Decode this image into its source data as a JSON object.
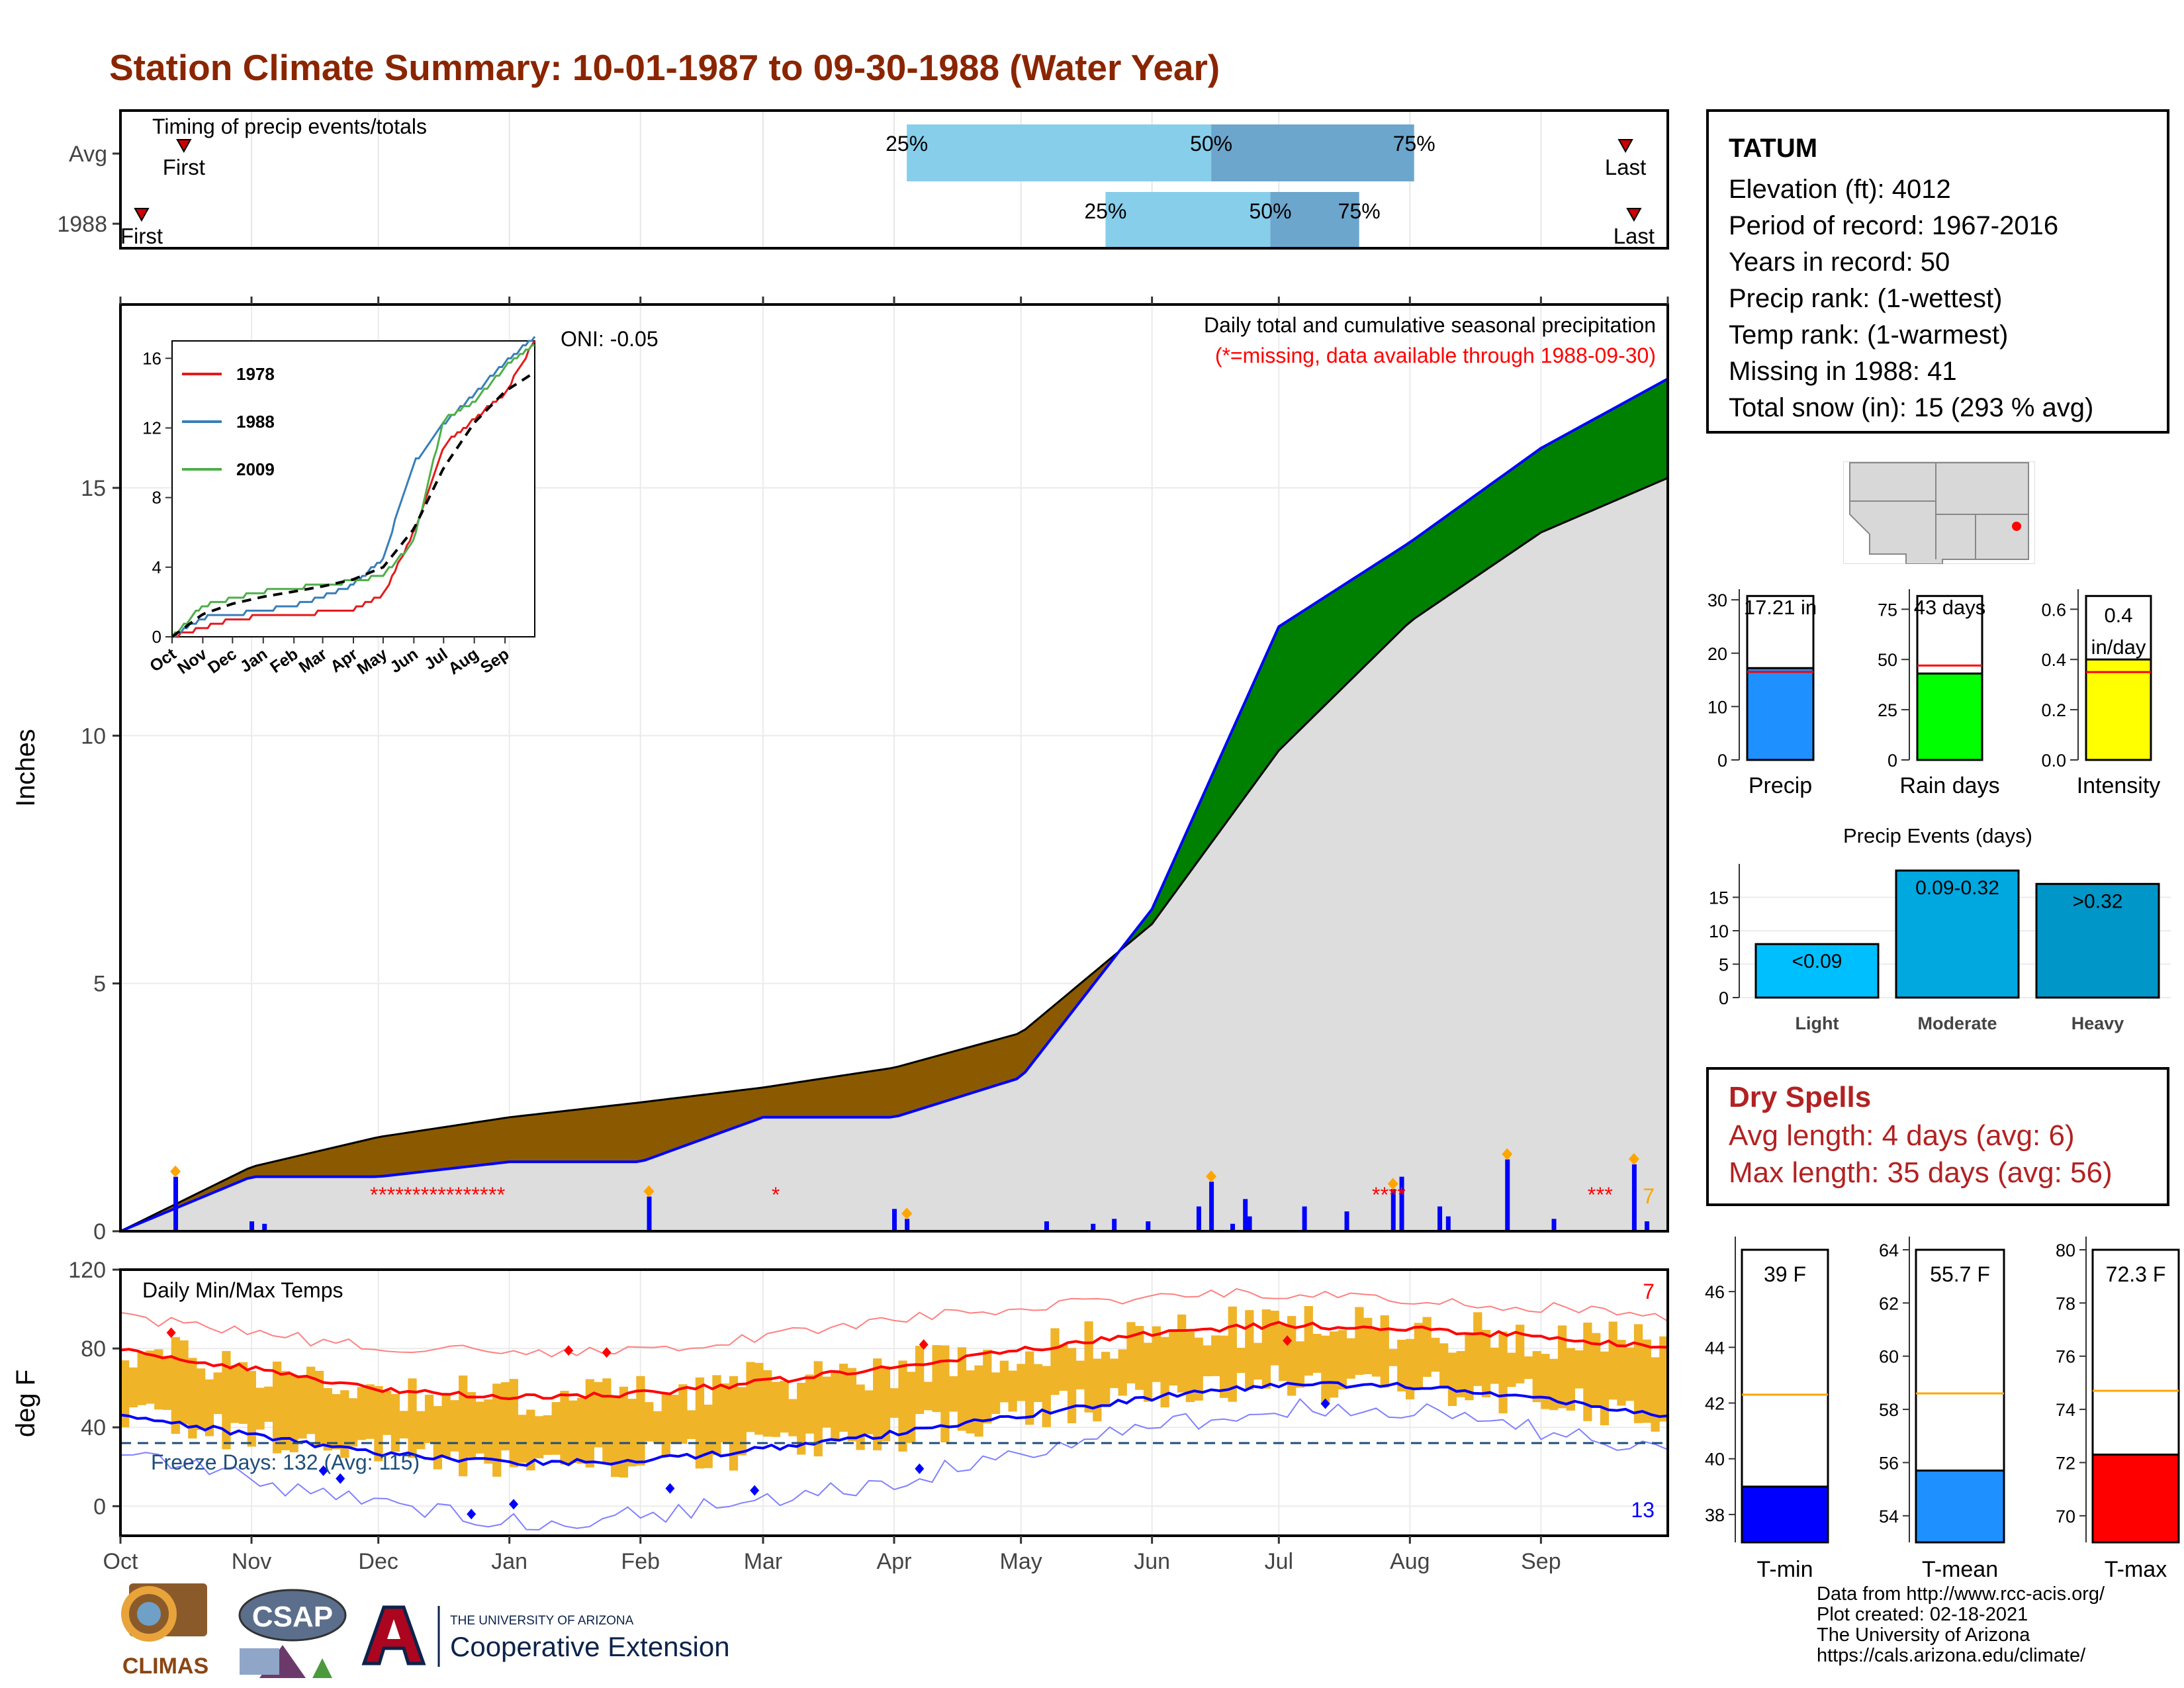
{
  "title": "Station Climate Summary: 10-01-1987 to 09-30-1988 (Water Year)",
  "timing": {
    "panel_label": "Timing of precip events/totals",
    "rows": [
      {
        "label": "Avg",
        "first_label": "First",
        "last_label": "Last",
        "first_day": 15,
        "last_day": 356,
        "p25": 186,
        "p50": 258,
        "p75": 306
      },
      {
        "label": "1988",
        "first_label": "First",
        "last_label": "Last",
        "first_day": 5,
        "last_day": 358,
        "p25": 233,
        "p50": 272,
        "p75": 293
      }
    ],
    "pct_labels": [
      "25%",
      "50%",
      "75%"
    ]
  },
  "precip": {
    "title": "Daily total and cumulative seasonal precipitation",
    "subtitle": "(*=missing, data available through 1988-09-30)",
    "oni": "ONI: -0.05",
    "ylabel": "Inches",
    "yticks": [
      "0",
      "5",
      "10",
      "15"
    ],
    "corner_count": "7",
    "colors": {
      "above": "#008000",
      "below": "#8B5A00",
      "avg_fill": "#DDDDDD",
      "cum_line": "#0000FF"
    }
  },
  "inset": {
    "yticks": [
      "0",
      "4",
      "8",
      "12",
      "16"
    ],
    "xticks": [
      "Oct",
      "Nov",
      "Dec",
      "Jan",
      "Feb",
      "Mar",
      "Apr",
      "May",
      "Jun",
      "Jul",
      "Aug",
      "Sep"
    ],
    "legend": [
      {
        "name": "1978",
        "color": "#E41A1C"
      },
      {
        "name": "1988",
        "color": "#377EB8"
      },
      {
        "name": "2009",
        "color": "#4DAF4A"
      }
    ]
  },
  "temps": {
    "title": "Daily Min/Max Temps",
    "ylabel": "deg F",
    "yticks": [
      "0",
      "40",
      "80",
      "120"
    ],
    "freeze_label": "Freeze Days: 132 (Avg: 115)",
    "max_count": "7",
    "min_count": "13",
    "freeze_line": 32
  },
  "xaxis": {
    "months": [
      "Oct",
      "Nov",
      "Dec",
      "Jan",
      "Feb",
      "Mar",
      "Apr",
      "May",
      "Jun",
      "Jul",
      "Aug",
      "Sep"
    ]
  },
  "station": {
    "name": "TATUM",
    "lines": [
      "Elevation (ft): 4012",
      "Period of record: 1967-2016",
      "Years in record: 50",
      "Precip rank:  (1-wettest)",
      "Temp rank:  (1-warmest)",
      "Missing in 1988: 41",
      "Total snow (in): 15 (293 % avg)"
    ]
  },
  "summary_bars": [
    {
      "label": "Precip",
      "value_text": "17.21 in",
      "value": 17.21,
      "avg": 16.5,
      "ymax": 32,
      "ticks": [
        "0",
        "10",
        "20",
        "30"
      ],
      "tickvals": [
        0,
        10,
        20,
        30
      ],
      "color": "#1E90FF"
    },
    {
      "label": "Rain days",
      "value_text": "43 days",
      "value": 43,
      "avg": 47,
      "ymax": 85,
      "ticks": [
        "0",
        "25",
        "50",
        "75"
      ],
      "tickvals": [
        0,
        25,
        50,
        75
      ],
      "color": "#00FF00"
    },
    {
      "label": "Intensity",
      "value_text": "0.4 in/day",
      "value": 0.4,
      "avg": 0.35,
      "ymax": 0.68,
      "ticks": [
        "0.0",
        "0.2",
        "0.4",
        "0.6"
      ],
      "tickvals": [
        0,
        0.2,
        0.4,
        0.6
      ],
      "color": "#FFFF00"
    }
  ],
  "events": {
    "title": "Precip Events (days)",
    "yticks": [
      "0",
      "5",
      "10",
      "15"
    ],
    "categories": [
      "Light",
      "Moderate",
      "Heavy"
    ],
    "labels": [
      "<0.09",
      "0.09-0.32",
      ">0.32"
    ],
    "values": [
      8,
      19,
      17
    ],
    "colors": [
      "#00BFFF",
      "#00A8E0",
      "#0096C8"
    ]
  },
  "dry_spells": {
    "title": "Dry Spells",
    "avg": "Avg length: 4 days (avg: 6)",
    "max": "Max length: 35 days (avg: 56)"
  },
  "temp_bars": [
    {
      "label": "T-min",
      "value_text": "39 F",
      "value": 39,
      "avg": 42.3,
      "ymin": 37,
      "ymax": 47.5,
      "ticks": [
        "38",
        "40",
        "42",
        "44",
        "46"
      ],
      "tickvals": [
        38,
        40,
        42,
        44,
        46
      ],
      "color": "#0000FF"
    },
    {
      "label": "T-mean",
      "value_text": "55.7 F",
      "value": 55.7,
      "avg": 58.6,
      "ymin": 53,
      "ymax": 64,
      "ticks": [
        "54",
        "56",
        "58",
        "60",
        "62",
        "64"
      ],
      "tickvals": [
        54,
        56,
        58,
        60,
        62,
        64
      ],
      "color": "#1E90FF"
    },
    {
      "label": "T-max",
      "value_text": "72.3 F",
      "value": 72.3,
      "avg": 74.7,
      "ymin": 69,
      "ymax": 80,
      "ticks": [
        "70",
        "72",
        "74",
        "76",
        "78",
        "80"
      ],
      "tickvals": [
        70,
        72,
        74,
        76,
        78,
        80
      ],
      "color": "#FF0000"
    }
  ],
  "credits": [
    "Data from http://www.rcc-acis.org/",
    "Plot created: 02-18-2021",
    "The University of Arizona",
    "https://cals.arizona.edu/climate/"
  ],
  "logos": {
    "climas": "CLIMAS",
    "csap": "CSAP",
    "ua_small": "THE UNIVERSITY OF ARIZONA",
    "ua_big": "Cooperative Extension"
  },
  "chart_data": [
    {
      "type": "area",
      "title": "Daily total and cumulative seasonal precipitation",
      "ylabel": "Inches",
      "ylim": [
        0,
        18.7
      ],
      "x": [
        "Oct",
        "Nov",
        "Dec",
        "Jan",
        "Feb",
        "Mar",
        "Apr",
        "May",
        "Jun",
        "Jul",
        "Aug",
        "Sep",
        "Sep-30"
      ],
      "series": [
        {
          "name": "1988 cumulative",
          "values": [
            0,
            1.1,
            1.1,
            1.4,
            1.4,
            2.3,
            2.3,
            3.1,
            6.5,
            12.2,
            13.9,
            15.8,
            17.2
          ]
        },
        {
          "name": "average cumulative",
          "values": [
            0,
            1.3,
            1.9,
            2.3,
            2.6,
            2.9,
            3.3,
            4.0,
            6.2,
            9.7,
            12.3,
            14.1,
            15.2
          ]
        }
      ],
      "daily_precip": [
        {
          "day": 13,
          "value": 1.1
        },
        {
          "day": 31,
          "value": 0.2
        },
        {
          "day": 34,
          "value": 0.15
        },
        {
          "day": 125,
          "value": 0.7
        },
        {
          "day": 183,
          "value": 0.45
        },
        {
          "day": 186,
          "value": 0.25
        },
        {
          "day": 219,
          "value": 0.2
        },
        {
          "day": 230,
          "value": 0.15
        },
        {
          "day": 235,
          "value": 0.25
        },
        {
          "day": 243,
          "value": 0.2
        },
        {
          "day": 255,
          "value": 0.5
        },
        {
          "day": 258,
          "value": 1.0
        },
        {
          "day": 263,
          "value": 0.15
        },
        {
          "day": 266,
          "value": 0.65
        },
        {
          "day": 267,
          "value": 0.3
        },
        {
          "day": 280,
          "value": 0.5
        },
        {
          "day": 290,
          "value": 0.4
        },
        {
          "day": 301,
          "value": 0.85
        },
        {
          "day": 303,
          "value": 1.1
        },
        {
          "day": 312,
          "value": 0.5
        },
        {
          "day": 314,
          "value": 0.3
        },
        {
          "day": 328,
          "value": 1.45
        },
        {
          "day": 339,
          "value": 0.25
        },
        {
          "day": 358,
          "value": 1.35
        },
        {
          "day": 361,
          "value": 0.2
        }
      ],
      "missing_days": [
        [
          60,
          90
        ],
        [
          155,
          155
        ],
        [
          297,
          304
        ],
        [
          348,
          352
        ]
      ]
    },
    {
      "type": "line",
      "title": "",
      "x": [
        "Oct",
        "Nov",
        "Dec",
        "Jan",
        "Feb",
        "Mar",
        "Apr",
        "May",
        "Jun",
        "Jul",
        "Aug",
        "Sep",
        "Sep-30"
      ],
      "ylim": [
        0,
        17
      ],
      "series": [
        {
          "name": "1978",
          "values": [
            0,
            0.5,
            1.0,
            1.2,
            1.3,
            1.4,
            1.6,
            2.4,
            6.0,
            11.0,
            12.5,
            14.0,
            17.0
          ]
        },
        {
          "name": "1988",
          "values": [
            0,
            1.1,
            1.3,
            1.5,
            1.8,
            2.3,
            3.0,
            4.5,
            10.0,
            12.2,
            13.9,
            15.8,
            17.2
          ]
        },
        {
          "name": "2009",
          "values": [
            0,
            1.8,
            2.2,
            2.6,
            2.8,
            3.0,
            3.2,
            3.5,
            5.5,
            12.5,
            13.5,
            15.5,
            16.8
          ]
        },
        {
          "name": "average",
          "values": [
            0,
            1.3,
            1.9,
            2.3,
            2.6,
            2.9,
            3.3,
            4.0,
            6.2,
            9.7,
            12.3,
            14.1,
            15.2
          ]
        }
      ]
    },
    {
      "type": "line",
      "title": "Daily Min/Max Temps",
      "ylabel": "deg F",
      "ylim": [
        -15,
        120
      ],
      "x": [
        "Oct",
        "Nov",
        "Dec",
        "Jan",
        "Feb",
        "Mar",
        "Apr",
        "May",
        "Jun",
        "Jul",
        "Aug",
        "Sep",
        "Sep-30"
      ],
      "series": [
        {
          "name": "avg max",
          "values": [
            79,
            70,
            59,
            55,
            57,
            63,
            71,
            79,
            88,
            92,
            90,
            86,
            80
          ]
        },
        {
          "name": "avg min",
          "values": [
            47,
            36,
            27,
            22,
            23,
            29,
            37,
            46,
            55,
            62,
            61,
            55,
            46
          ]
        },
        {
          "name": "record max",
          "values": [
            96,
            88,
            80,
            78,
            80,
            86,
            94,
            101,
            107,
            108,
            104,
            101,
            95
          ]
        },
        {
          "name": "record min",
          "values": [
            29,
            13,
            0,
            -8,
            -5,
            3,
            13,
            26,
            40,
            50,
            49,
            38,
            27
          ]
        }
      ]
    },
    {
      "type": "bar",
      "title": "Precip Events (days)",
      "categories": [
        "Light",
        "Moderate",
        "Heavy"
      ],
      "values": [
        8,
        19,
        17
      ],
      "ylim": [
        0,
        20
      ]
    },
    {
      "type": "bar",
      "title": "",
      "categories": [
        "Precip",
        "Rain days",
        "Intensity"
      ],
      "values": [
        17.21,
        43,
        0.4
      ]
    },
    {
      "type": "bar",
      "title": "",
      "categories": [
        "T-min",
        "T-mean",
        "T-max"
      ],
      "values": [
        39,
        55.7,
        72.3
      ]
    }
  ]
}
